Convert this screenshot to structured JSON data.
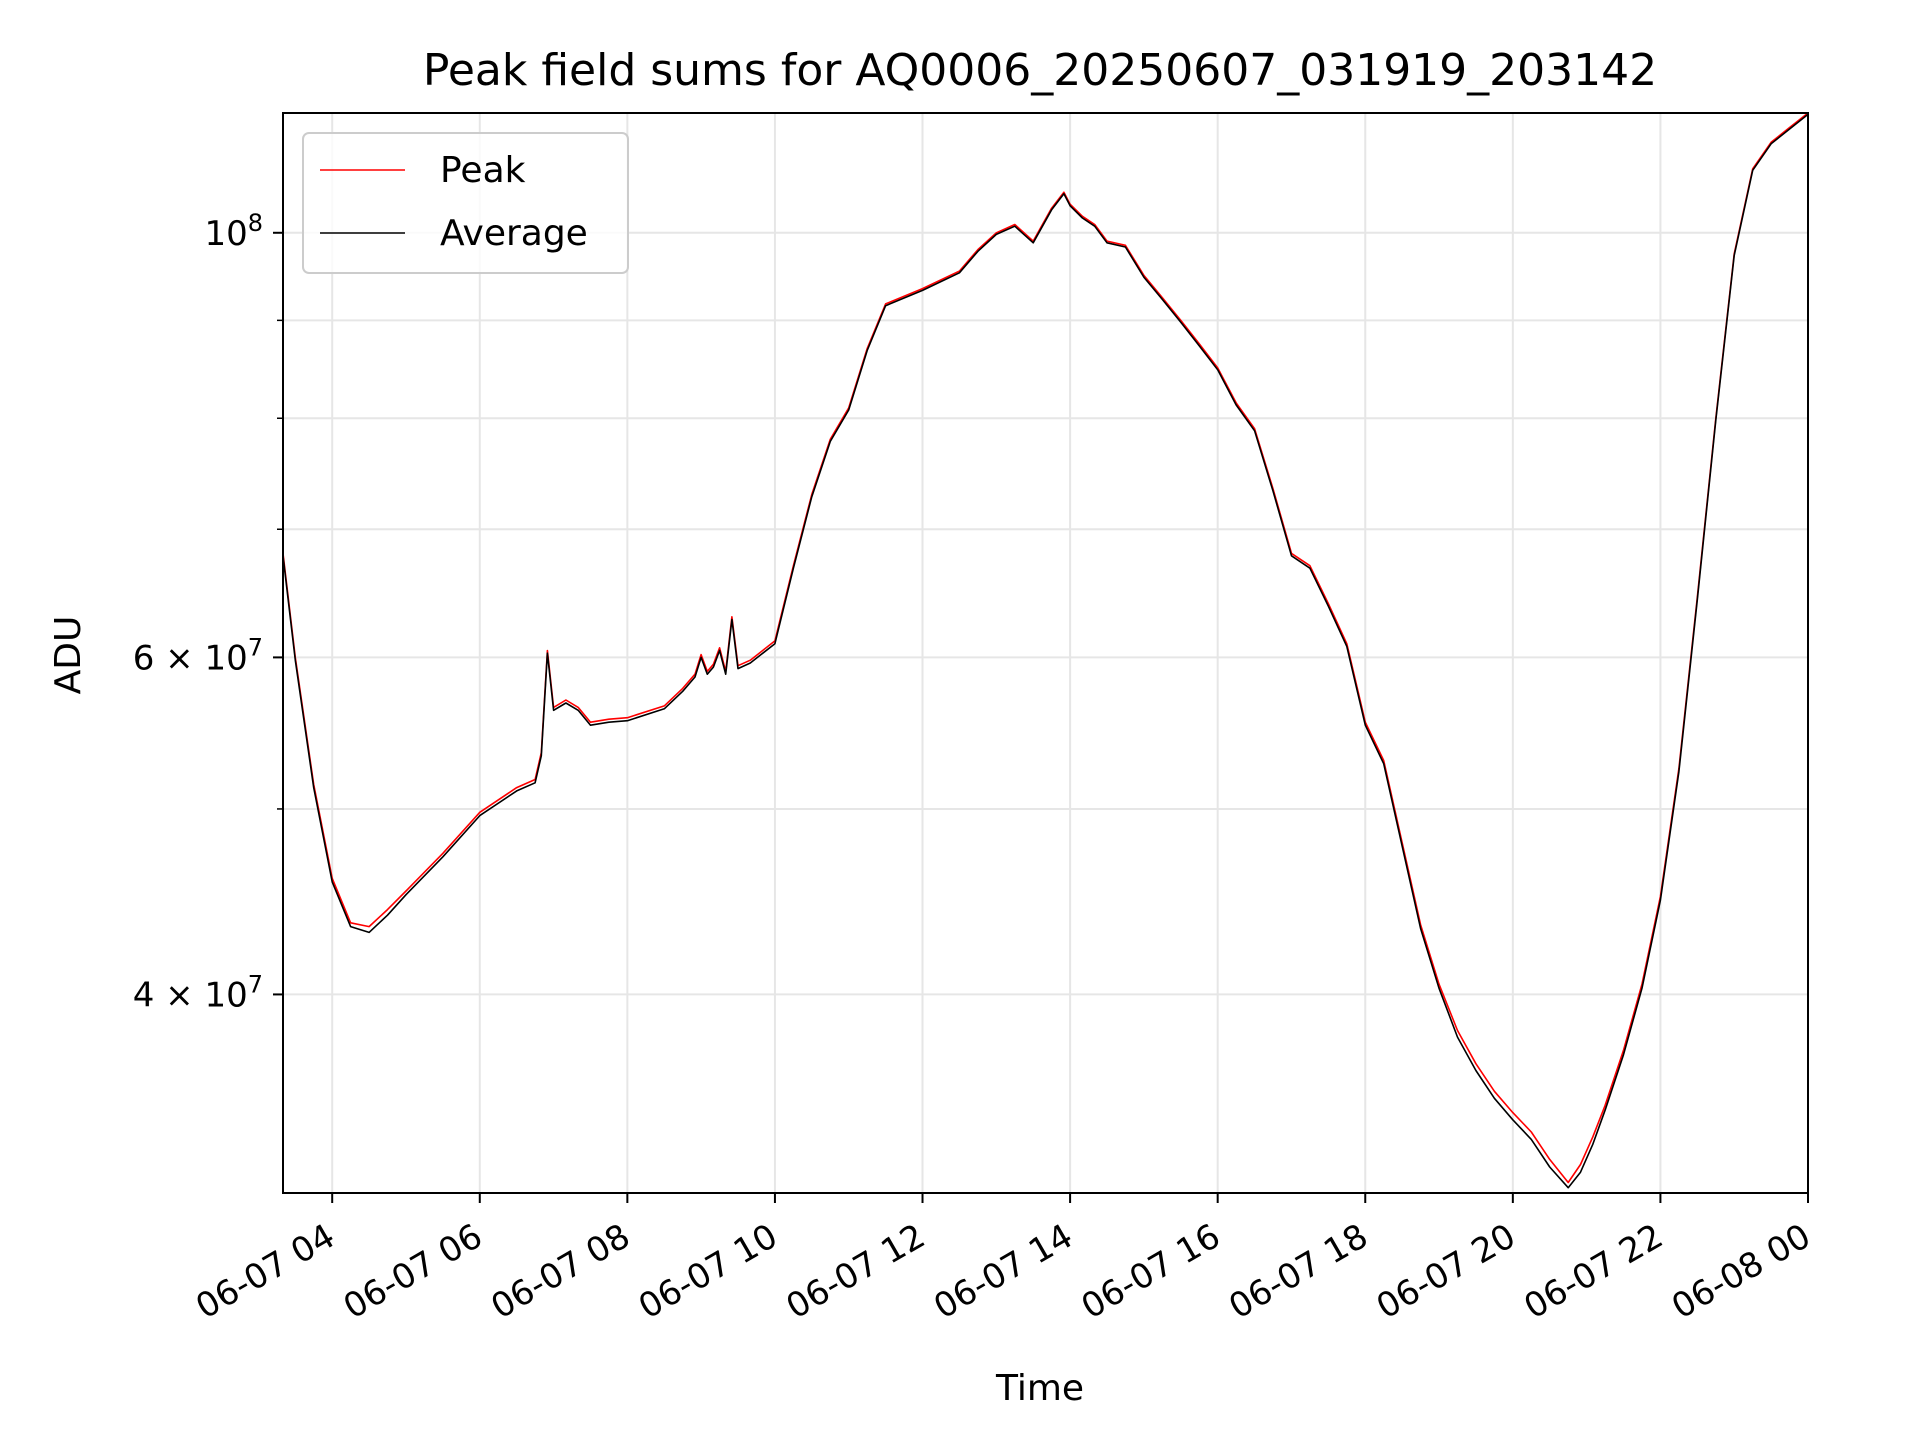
{
  "chart_data": {
    "type": "line",
    "title": "Peak field sums for AQ0006_20250607_031919_203142",
    "xlabel": "Time",
    "ylabel": "ADU",
    "x_range": [
      "2025-06-07 03:20",
      "2025-06-08 00:00"
    ],
    "y_range": [
      31500000,
      115500000
    ],
    "y_scale": "log",
    "grid": true,
    "legend_position": "upper left",
    "x_ticks": [
      {
        "x": "2025-06-07 04:00",
        "label": "06-07 04"
      },
      {
        "x": "2025-06-07 06:00",
        "label": "06-07 06"
      },
      {
        "x": "2025-06-07 08:00",
        "label": "06-07 08"
      },
      {
        "x": "2025-06-07 10:00",
        "label": "06-07 10"
      },
      {
        "x": "2025-06-07 12:00",
        "label": "06-07 12"
      },
      {
        "x": "2025-06-07 14:00",
        "label": "06-07 14"
      },
      {
        "x": "2025-06-07 16:00",
        "label": "06-07 16"
      },
      {
        "x": "2025-06-07 18:00",
        "label": "06-07 18"
      },
      {
        "x": "2025-06-07 20:00",
        "label": "06-07 20"
      },
      {
        "x": "2025-06-07 22:00",
        "label": "06-07 22"
      },
      {
        "x": "2025-06-08 00:00",
        "label": "06-08 00"
      }
    ],
    "y_major_ticks": [
      {
        "value": 40000000,
        "mantissa": "4",
        "exp": "7"
      },
      {
        "value": 60000000,
        "mantissa": "6",
        "exp": "7"
      },
      {
        "value": 100000000,
        "mantissa": "",
        "exp": "8"
      }
    ],
    "y_minor_ticks": [
      50000000,
      70000000,
      80000000,
      90000000
    ],
    "series": [
      {
        "name": "Peak",
        "color": "#ff0000",
        "x": [
          "2025-06-07 03:20",
          "2025-06-07 03:30",
          "2025-06-07 03:45",
          "2025-06-07 04:00",
          "2025-06-07 04:15",
          "2025-06-07 04:30",
          "2025-06-07 04:45",
          "2025-06-07 05:00",
          "2025-06-07 05:30",
          "2025-06-07 06:00",
          "2025-06-07 06:30",
          "2025-06-07 06:45",
          "2025-06-07 06:50",
          "2025-06-07 06:55",
          "2025-06-07 07:00",
          "2025-06-07 07:10",
          "2025-06-07 07:20",
          "2025-06-07 07:30",
          "2025-06-07 07:45",
          "2025-06-07 08:00",
          "2025-06-07 08:30",
          "2025-06-07 08:45",
          "2025-06-07 08:55",
          "2025-06-07 09:00",
          "2025-06-07 09:05",
          "2025-06-07 09:10",
          "2025-06-07 09:15",
          "2025-06-07 09:20",
          "2025-06-07 09:25",
          "2025-06-07 09:30",
          "2025-06-07 09:40",
          "2025-06-07 10:00",
          "2025-06-07 10:15",
          "2025-06-07 10:30",
          "2025-06-07 10:45",
          "2025-06-07 11:00",
          "2025-06-07 11:15",
          "2025-06-07 11:30",
          "2025-06-07 12:00",
          "2025-06-07 12:30",
          "2025-06-07 12:45",
          "2025-06-07 13:00",
          "2025-06-07 13:15",
          "2025-06-07 13:30",
          "2025-06-07 13:45",
          "2025-06-07 13:55",
          "2025-06-07 14:00",
          "2025-06-07 14:10",
          "2025-06-07 14:20",
          "2025-06-07 14:30",
          "2025-06-07 14:45",
          "2025-06-07 15:00",
          "2025-06-07 15:15",
          "2025-06-07 15:30",
          "2025-06-07 15:45",
          "2025-06-07 16:00",
          "2025-06-07 16:15",
          "2025-06-07 16:30",
          "2025-06-07 16:45",
          "2025-06-07 17:00",
          "2025-06-07 17:15",
          "2025-06-07 17:30",
          "2025-06-07 17:45",
          "2025-06-07 18:00",
          "2025-06-07 18:15",
          "2025-06-07 18:30",
          "2025-06-07 18:45",
          "2025-06-07 19:00",
          "2025-06-07 19:15",
          "2025-06-07 19:30",
          "2025-06-07 19:45",
          "2025-06-07 20:00",
          "2025-06-07 20:15",
          "2025-06-07 20:30",
          "2025-06-07 20:45",
          "2025-06-07 20:55",
          "2025-06-07 21:05",
          "2025-06-07 21:15",
          "2025-06-07 21:30",
          "2025-06-07 21:45",
          "2025-06-07 22:00",
          "2025-06-07 22:15",
          "2025-06-07 22:30",
          "2025-06-07 22:45",
          "2025-06-07 23:00",
          "2025-06-07 23:15",
          "2025-06-07 23:30",
          "2025-06-07 23:45",
          "2025-06-08 00:00"
        ],
        "y": [
          68000000,
          60000000,
          51500000,
          46000000,
          43600000,
          43400000,
          44300000,
          45300000,
          47400000,
          49800000,
          51300000,
          51800000,
          53500000,
          60500000,
          56500000,
          57000000,
          56500000,
          55500000,
          55700000,
          55800000,
          56600000,
          57800000,
          58800000,
          60200000,
          59000000,
          59500000,
          60700000,
          59000000,
          63000000,
          59400000,
          59800000,
          61200000,
          67000000,
          73000000,
          78000000,
          81000000,
          87000000,
          91800000,
          93500000,
          95500000,
          98000000,
          100000000,
          101000000,
          99000000,
          103000000,
          105000000,
          103500000,
          102000000,
          101000000,
          99000000,
          98500000,
          95000000,
          92500000,
          90000000,
          87500000,
          85000000,
          81500000,
          79000000,
          73500000,
          68000000,
          67000000,
          64000000,
          61000000,
          55500000,
          53000000,
          48000000,
          43500000,
          40500000,
          38300000,
          36800000,
          35600000,
          34700000,
          33900000,
          32800000,
          31900000,
          32600000,
          33700000,
          35000000,
          37400000,
          40500000,
          45000000,
          52500000,
          64500000,
          80000000,
          97500000,
          108000000,
          111500000,
          113500000,
          115500000
        ]
      },
      {
        "name": "Average",
        "color": "#000000",
        "x": [
          "2025-06-07 03:20",
          "2025-06-07 03:30",
          "2025-06-07 03:45",
          "2025-06-07 04:00",
          "2025-06-07 04:15",
          "2025-06-07 04:30",
          "2025-06-07 04:45",
          "2025-06-07 05:00",
          "2025-06-07 05:30",
          "2025-06-07 06:00",
          "2025-06-07 06:30",
          "2025-06-07 06:45",
          "2025-06-07 06:50",
          "2025-06-07 06:55",
          "2025-06-07 07:00",
          "2025-06-07 07:10",
          "2025-06-07 07:20",
          "2025-06-07 07:30",
          "2025-06-07 07:45",
          "2025-06-07 08:00",
          "2025-06-07 08:30",
          "2025-06-07 08:45",
          "2025-06-07 08:55",
          "2025-06-07 09:00",
          "2025-06-07 09:05",
          "2025-06-07 09:10",
          "2025-06-07 09:15",
          "2025-06-07 09:20",
          "2025-06-07 09:25",
          "2025-06-07 09:30",
          "2025-06-07 09:40",
          "2025-06-07 10:00",
          "2025-06-07 10:15",
          "2025-06-07 10:30",
          "2025-06-07 10:45",
          "2025-06-07 11:00",
          "2025-06-07 11:15",
          "2025-06-07 11:30",
          "2025-06-07 12:00",
          "2025-06-07 12:30",
          "2025-06-07 12:45",
          "2025-06-07 13:00",
          "2025-06-07 13:15",
          "2025-06-07 13:30",
          "2025-06-07 13:45",
          "2025-06-07 13:55",
          "2025-06-07 14:00",
          "2025-06-07 14:10",
          "2025-06-07 14:20",
          "2025-06-07 14:30",
          "2025-06-07 14:45",
          "2025-06-07 15:00",
          "2025-06-07 15:15",
          "2025-06-07 15:30",
          "2025-06-07 15:45",
          "2025-06-07 16:00",
          "2025-06-07 16:15",
          "2025-06-07 16:30",
          "2025-06-07 16:45",
          "2025-06-07 17:00",
          "2025-06-07 17:15",
          "2025-06-07 17:30",
          "2025-06-07 17:45",
          "2025-06-07 18:00",
          "2025-06-07 18:15",
          "2025-06-07 18:30",
          "2025-06-07 18:45",
          "2025-06-07 19:00",
          "2025-06-07 19:15",
          "2025-06-07 19:30",
          "2025-06-07 19:45",
          "2025-06-07 20:00",
          "2025-06-07 20:15",
          "2025-06-07 20:30",
          "2025-06-07 20:45",
          "2025-06-07 20:55",
          "2025-06-07 21:05",
          "2025-06-07 21:15",
          "2025-06-07 21:30",
          "2025-06-07 21:45",
          "2025-06-07 22:00",
          "2025-06-07 22:15",
          "2025-06-07 22:30",
          "2025-06-07 22:45",
          "2025-06-07 23:00",
          "2025-06-07 23:15",
          "2025-06-07 23:30",
          "2025-06-07 23:45",
          "2025-06-08 00:00"
        ],
        "y": [
          67800000,
          59800000,
          51300000,
          45800000,
          43400000,
          43100000,
          44000000,
          45100000,
          47200000,
          49600000,
          51100000,
          51600000,
          53300000,
          60300000,
          56300000,
          56800000,
          56300000,
          55300000,
          55500000,
          55600000,
          56400000,
          57600000,
          58600000,
          60000000,
          58800000,
          59300000,
          60500000,
          58800000,
          62800000,
          59200000,
          59600000,
          61000000,
          66800000,
          72800000,
          77800000,
          80800000,
          86800000,
          91600000,
          93300000,
          95300000,
          97800000,
          99800000,
          100800000,
          98800000,
          102800000,
          104800000,
          103300000,
          101800000,
          100800000,
          98800000,
          98300000,
          94800000,
          92300000,
          89800000,
          87300000,
          84800000,
          81300000,
          78800000,
          73300000,
          67800000,
          66800000,
          63800000,
          60800000,
          55300000,
          52800000,
          47800000,
          43300000,
          40300000,
          38000000,
          36500000,
          35300000,
          34400000,
          33600000,
          32500000,
          31700000,
          32300000,
          33400000,
          34800000,
          37200000,
          40300000,
          44800000,
          52300000,
          64300000,
          79800000,
          97300000,
          107800000,
          111300000,
          113300000,
          115300000
        ]
      }
    ]
  }
}
